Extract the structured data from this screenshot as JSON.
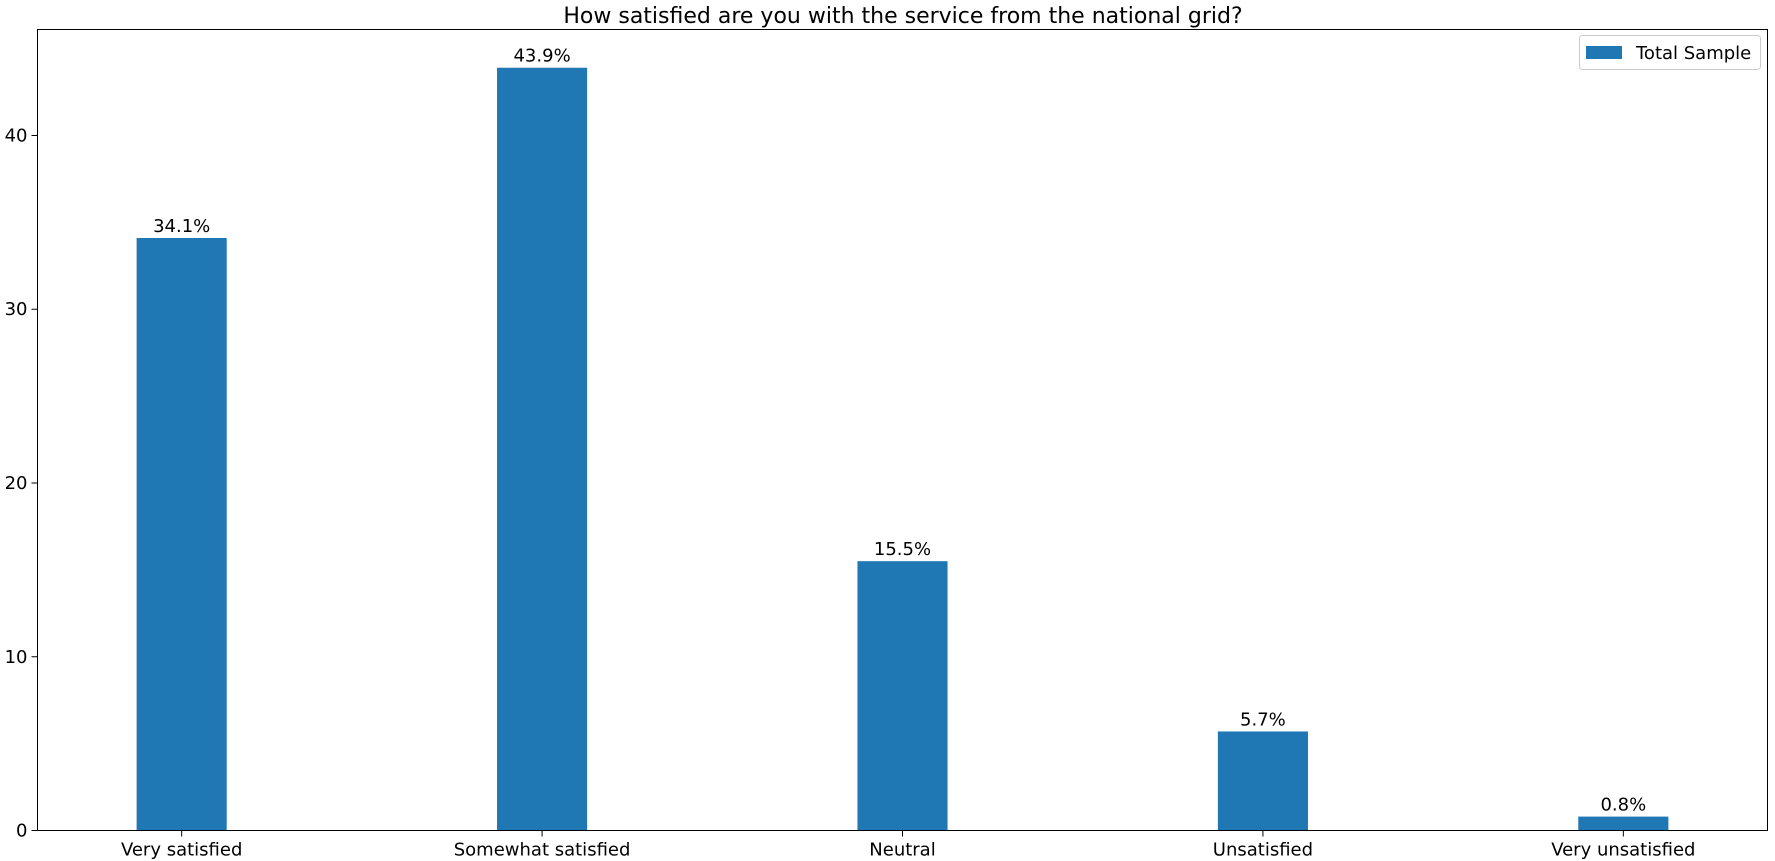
{
  "chart_data": {
    "type": "bar",
    "title": "How satisfied are you with the service from the national grid?",
    "xlabel": "",
    "ylabel": "",
    "categories": [
      "Very satisfied",
      "Somewhat satisfied",
      "Neutral",
      "Unsatisfied",
      "Very unsatisfied"
    ],
    "series": [
      {
        "name": "Total Sample",
        "values": [
          34.1,
          43.9,
          15.5,
          5.7,
          0.8
        ],
        "data_labels": [
          "34.1%",
          "43.9%",
          "15.5%",
          "5.7%",
          "0.8%"
        ],
        "color": "#1f77b4"
      }
    ],
    "yticks": [
      0,
      10,
      20,
      30,
      40
    ],
    "ylim": [
      0,
      46.1
    ],
    "grid": false,
    "legend_position": "top-right"
  }
}
